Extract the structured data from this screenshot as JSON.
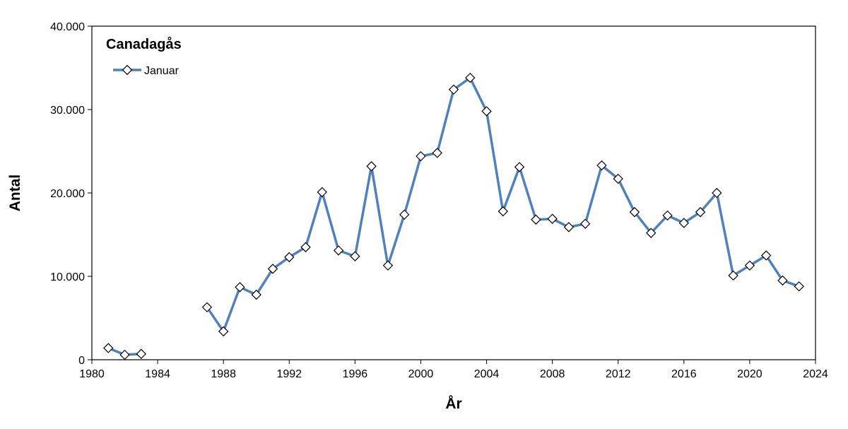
{
  "chart_data": {
    "type": "line",
    "title": "Canadagås",
    "xlabel": "År",
    "ylabel": "Antal",
    "xlim": [
      1980,
      2024
    ],
    "ylim": [
      0,
      40000
    ],
    "x_ticks": [
      1980,
      1984,
      1988,
      1992,
      1996,
      2000,
      2004,
      2008,
      2012,
      2016,
      2020,
      2024
    ],
    "y_ticks": [
      0,
      10000,
      20000,
      30000,
      40000
    ],
    "y_tick_labels": [
      "0",
      "10.000",
      "20.000",
      "30.000",
      "40.000"
    ],
    "grid": false,
    "legend_position": "top-left",
    "series": [
      {
        "name": "Januar",
        "color": "#4f81bd",
        "marker": "diamond",
        "x": [
          1981,
          1982,
          1983,
          1987,
          1988,
          1989,
          1990,
          1991,
          1992,
          1993,
          1994,
          1995,
          1996,
          1997,
          1998,
          1999,
          2000,
          2001,
          2002,
          2003,
          2004,
          2005,
          2006,
          2007,
          2008,
          2009,
          2010,
          2011,
          2012,
          2013,
          2014,
          2015,
          2016,
          2017,
          2018,
          2019,
          2020,
          2021,
          2022,
          2023
        ],
        "values": [
          1400,
          600,
          700,
          6300,
          3400,
          8700,
          7800,
          10900,
          12300,
          13500,
          20100,
          13100,
          12400,
          23200,
          11300,
          17400,
          24400,
          24800,
          32400,
          33800,
          29800,
          17800,
          23100,
          16800,
          16900,
          15900,
          16300,
          23300,
          21700,
          17700,
          15200,
          17300,
          16400,
          17700,
          20000,
          10100,
          11300,
          12500,
          9500,
          8800
        ]
      }
    ]
  }
}
